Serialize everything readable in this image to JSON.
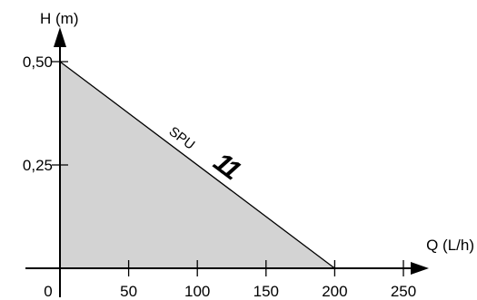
{
  "chart_data": {
    "type": "area",
    "title": "",
    "xlabel": "Q (L/h)",
    "ylabel": "H (m)",
    "xlim": [
      0,
      250
    ],
    "ylim": [
      0,
      0.5
    ],
    "x_ticks": [
      {
        "value": 0,
        "label": "0"
      },
      {
        "value": 50,
        "label": "50"
      },
      {
        "value": 100,
        "label": "100"
      },
      {
        "value": 150,
        "label": "150"
      },
      {
        "value": 200,
        "label": "200"
      },
      {
        "value": 250,
        "label": "250"
      }
    ],
    "y_ticks": [
      {
        "value": 0.25,
        "label": "0,25"
      },
      {
        "value": 0.5,
        "label": "0,50"
      }
    ],
    "series": [
      {
        "name": "SPU",
        "number": "11",
        "x": [
          0,
          200
        ],
        "y": [
          0.5,
          0
        ],
        "fill": "#d3d3d3",
        "line_color": "#000000"
      }
    ],
    "grid": false,
    "legend": "none"
  }
}
